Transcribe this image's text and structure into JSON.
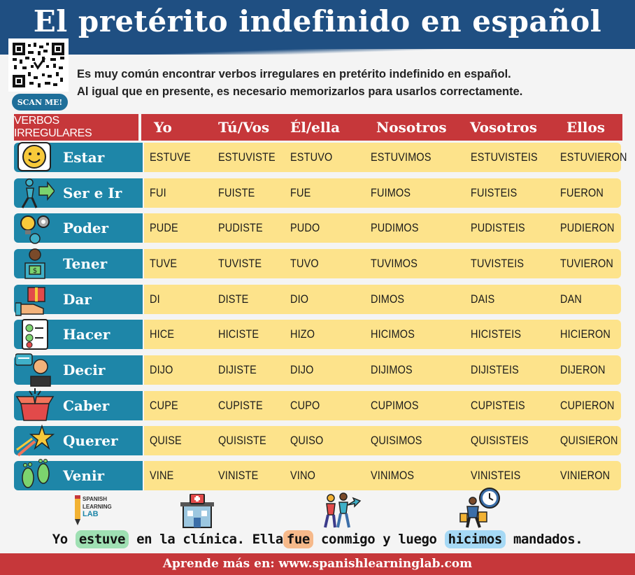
{
  "title": "El pretérito indefinido en español",
  "qr": {
    "button_label": "SCAN ME!"
  },
  "intro": {
    "line1": "Es muy común encontrar verbos irregulares en pretérito indefinido en español.",
    "line2": "Al igual que en presente, es necesario memorizarlos para usarlos correctamente."
  },
  "table": {
    "headers": [
      "VERBOS IRREGULARES",
      "Yo",
      "Tú/Vos",
      "Él/ella",
      "Nosotros",
      "Vosotros",
      "Ellos"
    ],
    "rows": [
      {
        "verb": "Estar",
        "icon": "smiley-face-icon",
        "forms": [
          "ESTUVE",
          "ESTUVISTE",
          "ESTUVO",
          "ESTUVIMOS",
          "ESTUVISTEIS",
          "ESTUVIERON"
        ]
      },
      {
        "verb": "Ser e Ir",
        "icon": "walking-person-icon",
        "forms": [
          "FUI",
          "FUISTE",
          "FUE",
          "FUIMOS",
          "FUISTEIS",
          "FUERON"
        ]
      },
      {
        "verb": "Poder",
        "icon": "lightbulb-gear-icon",
        "forms": [
          "PUDE",
          "PUDISTE",
          "PUDO",
          "PUDIMOS",
          "PUDISTEIS",
          "PUDIERON"
        ]
      },
      {
        "verb": "Tener",
        "icon": "person-money-icon",
        "forms": [
          "TUVE",
          "TUVISTE",
          "TUVO",
          "TUVIMOS",
          "TUVISTEIS",
          "TUVIERON"
        ]
      },
      {
        "verb": "Dar",
        "icon": "hand-gift-icon",
        "forms": [
          "DI",
          "DISTE",
          "DIO",
          "DIMOS",
          "DAIS",
          "DAN"
        ]
      },
      {
        "verb": "Hacer",
        "icon": "checklist-icon",
        "forms": [
          "HICE",
          "HICISTE",
          "HIZO",
          "HICIMOS",
          "HICISTEIS",
          "HICIERON"
        ]
      },
      {
        "verb": "Decir",
        "icon": "speaking-person-icon",
        "forms": [
          "DIJO",
          "DIJISTE",
          "DIJO",
          "DIJIMOS",
          "DIJISTEIS",
          "DIJERON"
        ]
      },
      {
        "verb": "Caber",
        "icon": "open-box-icon",
        "forms": [
          "CUPE",
          "CUPISTE",
          "CUPO",
          "CUPIMOS",
          "CUPISTEIS",
          "CUPIERON"
        ]
      },
      {
        "verb": "Querer",
        "icon": "shooting-star-icon",
        "forms": [
          "QUISE",
          "QUISISTE",
          "QUISO",
          "QUISIMOS",
          "QUISISTEIS",
          "QUISIERON"
        ]
      },
      {
        "verb": "Venir",
        "icon": "footprints-icon",
        "forms": [
          "VINE",
          "VINISTE",
          "VINO",
          "VINIMOS",
          "VINISTEIS",
          "VINIERON"
        ]
      }
    ]
  },
  "logo": {
    "line1": "SPANISH",
    "line2": "LEARNING",
    "line3": "LAB"
  },
  "example": {
    "p1": "Yo ",
    "w1": "estuve",
    "p2": " en la clínica. Ella",
    "w2": "fue",
    "p3": " conmigo y luego ",
    "w3": "hicimos",
    "p4": " mandados."
  },
  "footer": "Aprende más en: www.spanishlearninglab.com",
  "colors": {
    "header_blue": "#1f4f82",
    "table_red": "#c6373a",
    "verb_teal": "#1e86a8",
    "cell_yellow": "#fde38b"
  }
}
